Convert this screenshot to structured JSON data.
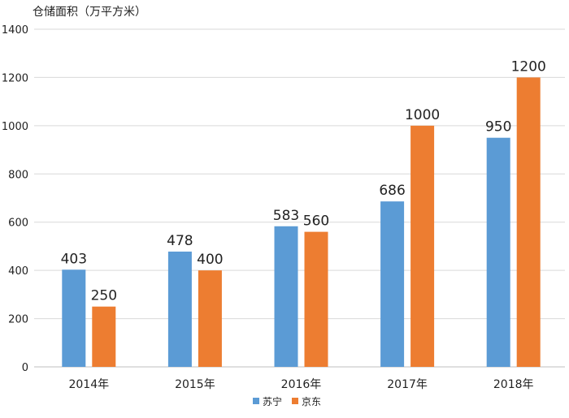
{
  "chart_data": {
    "type": "bar",
    "ylabel": "仓储面积（万平方米）",
    "ylim": [
      0,
      1400
    ],
    "yticks": [
      0,
      200,
      400,
      600,
      800,
      1000,
      1200,
      1400
    ],
    "grid": true,
    "legend_position": "bottom-center",
    "categories": [
      "2014年",
      "2015年",
      "2016年",
      "2017年",
      "2018年"
    ],
    "series": [
      {
        "name": "苏宁",
        "color": "#5B9BD5",
        "values": [
          403,
          478,
          583,
          686,
          950
        ]
      },
      {
        "name": "京东",
        "color": "#ED7D31",
        "values": [
          250,
          400,
          560,
          1000,
          1200
        ]
      }
    ]
  }
}
